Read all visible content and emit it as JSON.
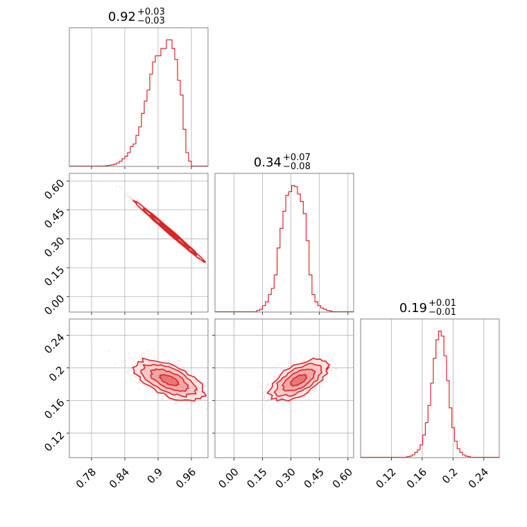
{
  "chart_data": {
    "type": "corner",
    "colors": {
      "main": "#d62728",
      "fill": "#f2a5a5",
      "grid": "#b0b0b0",
      "frame": "#808080"
    },
    "panels": [
      {
        "id": "hist-p1",
        "type": "histogram",
        "title_main": "0.92",
        "title_sup": "+0.03",
        "title_sub": "−0.03",
        "xlim": [
          0.74,
          0.99
        ],
        "xticks": [
          0.78,
          0.84,
          0.9,
          0.96
        ],
        "edges_start": 0.74,
        "bin_width": 0.005,
        "counts": [
          0,
          0,
          0,
          0,
          0,
          0,
          0,
          0,
          0,
          0,
          0,
          0,
          0,
          0.3,
          0.6,
          1,
          1.5,
          2.5,
          4,
          6,
          8,
          11,
          16,
          18,
          25,
          32,
          43,
          53,
          62,
          75,
          85,
          90,
          90,
          96,
          96,
          103,
          103,
          96,
          87,
          70,
          58,
          30,
          11,
          4
        ]
      },
      {
        "id": "hist-p2",
        "type": "histogram",
        "title_main": "0.34",
        "title_sup": "+0.07",
        "title_sub": "−0.08",
        "xlim": [
          -0.1,
          0.63
        ],
        "xticks": [
          "0.00",
          "0.15",
          "0.30",
          "0.45",
          "0.60"
        ],
        "xtick_values": [
          0.0,
          0.15,
          0.3,
          0.45,
          0.6
        ],
        "edges_start": 0.12,
        "bin_width": 0.0153,
        "counts": [
          1,
          2,
          5,
          8,
          14,
          19,
          30,
          52,
          68,
          82,
          95,
          98,
          103,
          102,
          96,
          90,
          80,
          58,
          30,
          14,
          8,
          5,
          3,
          2,
          1,
          0.5,
          0
        ]
      },
      {
        "id": "hist-p3",
        "type": "histogram",
        "title_main": "0.19",
        "title_sup": "+0.01",
        "title_sub": "−0.01",
        "xlim": [
          0.08,
          0.26
        ],
        "xticks": [
          0.12,
          0.16,
          0.2,
          0.24
        ],
        "edges_start": 0.14,
        "bin_width": 0.00344,
        "counts": [
          0.5,
          1,
          2,
          4,
          6,
          10,
          18,
          28,
          42,
          60,
          80,
          95,
          102,
          98,
          82,
          62,
          40,
          24,
          13,
          7,
          4,
          2,
          1,
          0.5
        ]
      },
      {
        "id": "scatter-p2-vs-p1",
        "type": "density2d",
        "xlim": [
          0.74,
          0.99
        ],
        "ylim": [
          -0.08,
          0.64
        ],
        "yticks": [
          "0.00",
          "0.15",
          "0.30",
          "0.45",
          "0.60"
        ],
        "ytick_values": [
          0.0,
          0.15,
          0.3,
          0.45,
          0.6
        ],
        "mean": [
          0.92,
          0.34
        ],
        "sd": [
          0.03,
          0.075
        ],
        "rho": -0.995
      },
      {
        "id": "scatter-p3-vs-p1",
        "type": "density2d",
        "xlim": [
          0.74,
          0.99
        ],
        "ylim": [
          0.09,
          0.26
        ],
        "yticks": [
          0.12,
          0.16,
          0.2,
          0.24
        ],
        "mean": [
          0.92,
          0.185
        ],
        "sd": [
          0.03,
          0.012
        ],
        "rho": -0.6
      },
      {
        "id": "scatter-p3-vs-p2",
        "type": "density2d",
        "xlim": [
          -0.1,
          0.63
        ],
        "ylim": [
          0.09,
          0.26
        ],
        "mean": [
          0.34,
          0.185
        ],
        "sd": [
          0.075,
          0.012
        ],
        "rho": 0.6
      }
    ]
  }
}
